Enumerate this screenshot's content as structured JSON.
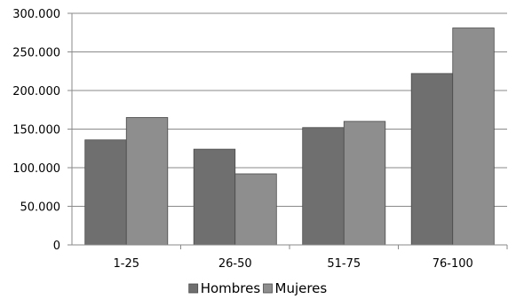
{
  "chart_data": {
    "type": "bar",
    "title": "",
    "xlabel": "",
    "ylabel": "",
    "categories": [
      "1-25",
      "26-50",
      "51-75",
      "76-100"
    ],
    "series": [
      {
        "name": "Hombres",
        "values": [
          136000,
          124000,
          152000,
          222000
        ],
        "color": "#6f6f6f"
      },
      {
        "name": "Mujeres",
        "values": [
          165000,
          92000,
          160000,
          281000
        ],
        "color": "#8e8e8e"
      }
    ],
    "ylim": [
      0,
      300000
    ],
    "yticks": [
      0,
      50000,
      100000,
      150000,
      200000,
      250000,
      300000
    ],
    "ytick_labels": [
      "0",
      "50.000",
      "100.000",
      "150.000",
      "200.000",
      "250.000",
      "300.000"
    ],
    "grid": true,
    "legend_position": "bottom"
  }
}
